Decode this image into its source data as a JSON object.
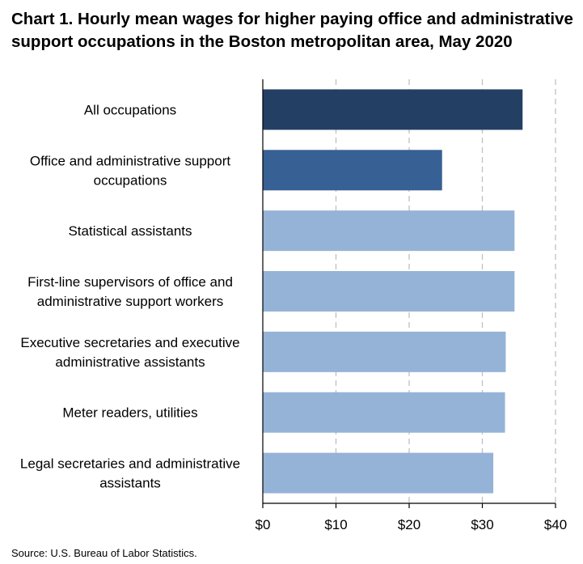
{
  "title": "Chart 1. Hourly mean wages for higher paying office and administrative support occupations in the Boston metropolitan area, May 2020",
  "source": "Source: U.S. Bureau of Labor Statistics.",
  "colors": {
    "dark": "#243f64",
    "medium": "#376094",
    "light": "#95b3d7",
    "grid": "#bfbfbf",
    "axis": "#000000"
  },
  "chart_data": {
    "type": "bar",
    "orientation": "horizontal",
    "title": "Chart 1. Hourly mean wages for higher paying office and administrative support occupations in the Boston metropolitan area, May 2020",
    "xlabel": "",
    "ylabel": "",
    "xlim": [
      0,
      40
    ],
    "ticks": [
      0,
      10,
      20,
      30,
      40
    ],
    "tick_labels": [
      "$0",
      "$10",
      "$20",
      "$30",
      "$40"
    ],
    "grid": "vertical dashed",
    "categories": [
      [
        "All occupations"
      ],
      [
        "Office and administrative support",
        "occupations"
      ],
      [
        "Statistical assistants"
      ],
      [
        "First-line supervisors of office and",
        "administrative support workers"
      ],
      [
        "Executive secretaries and executive",
        "administrative assistants"
      ],
      [
        "Meter readers, utilities"
      ],
      [
        "Legal secretaries and administrative",
        "assistants"
      ]
    ],
    "values": [
      35.5,
      24.5,
      34.4,
      34.4,
      33.2,
      33.1,
      31.5
    ],
    "bar_colors": [
      "dark",
      "medium",
      "light",
      "light",
      "light",
      "light",
      "light"
    ]
  }
}
